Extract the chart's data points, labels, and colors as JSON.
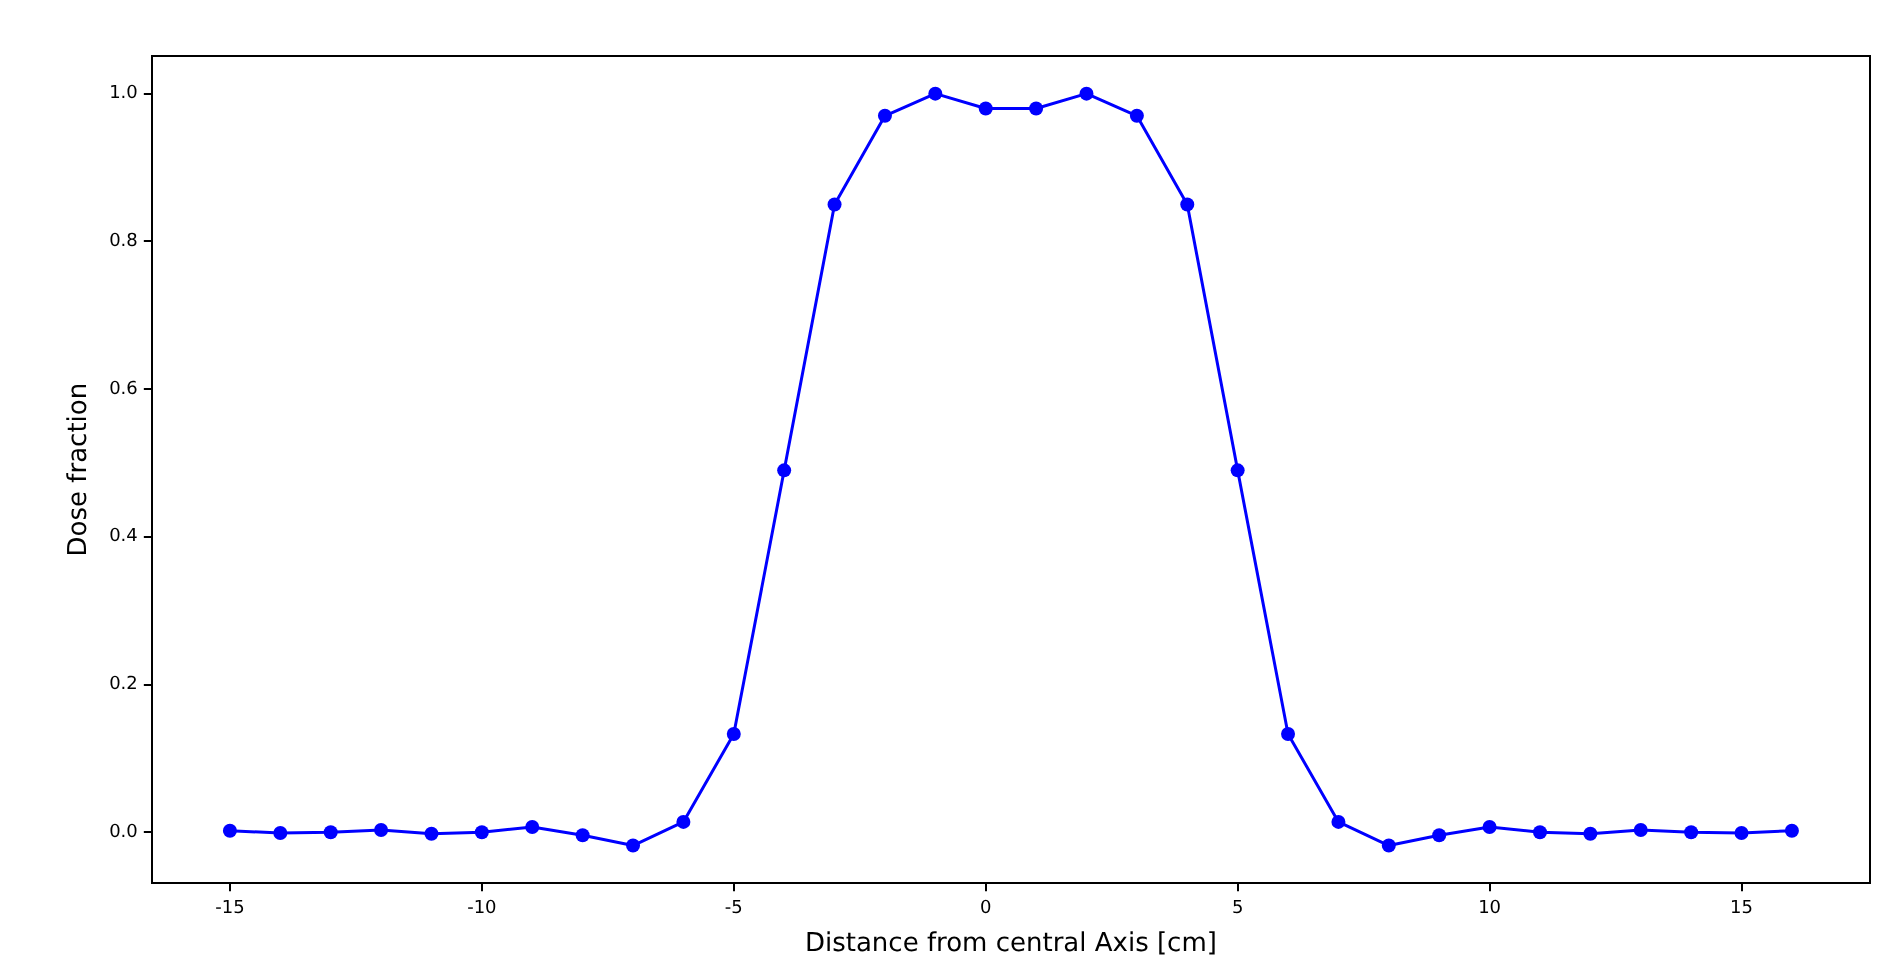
{
  "chart_data": {
    "type": "line",
    "xlabel": "Distance from central Axis [cm]",
    "ylabel": "Dose fraction",
    "x": [
      -15,
      -14,
      -13,
      -12,
      -11,
      -10,
      -9,
      -8,
      -7,
      -6,
      -5,
      -4,
      -3,
      -2,
      -1,
      0,
      1,
      2,
      3,
      4,
      5,
      6,
      7,
      8,
      9,
      10,
      11,
      12,
      13,
      14,
      15,
      16
    ],
    "series": [
      {
        "color": "#0000ff",
        "values": [
          0.002,
          -0.001,
          0.0,
          0.003,
          -0.002,
          0.0,
          0.007,
          -0.004,
          -0.018,
          0.014,
          0.133,
          0.49,
          0.85,
          0.97,
          1.0,
          0.98,
          0.98,
          1.0,
          0.97,
          0.85,
          0.49,
          0.133,
          0.014,
          -0.018,
          -0.004,
          0.007,
          0.0,
          -0.002,
          0.003,
          0.0,
          -0.001,
          0.002
        ]
      }
    ],
    "xlim": [
      -16.55,
      17.55
    ],
    "ylim": [
      -0.069,
      1.051
    ],
    "xticks": [
      -15,
      -10,
      -5,
      0,
      5,
      10,
      15
    ],
    "yticks": [
      {
        "value": 0,
        "label": "0.0"
      },
      {
        "value": 0.2,
        "label": "0.2"
      },
      {
        "value": 0.4,
        "label": "0.4"
      },
      {
        "value": 0.6,
        "label": "0.6"
      },
      {
        "value": 0.8,
        "label": "0.8"
      },
      {
        "value": 1.0,
        "label": "1.0"
      }
    ],
    "marker": "circle",
    "line_style": "solid",
    "grid": false,
    "legend": false
  }
}
